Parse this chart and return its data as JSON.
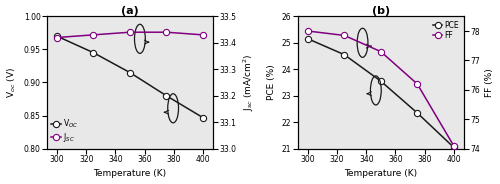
{
  "temperature": [
    300,
    325,
    350,
    375,
    400
  ],
  "Voc": [
    0.97,
    0.945,
    0.915,
    0.88,
    0.847
  ],
  "Jsc": [
    33.42,
    33.43,
    33.44,
    33.44,
    33.43
  ],
  "PCE": [
    25.15,
    24.55,
    23.55,
    22.35,
    21.05
  ],
  "FF": [
    78.0,
    77.85,
    77.3,
    76.2,
    74.1
  ],
  "color_black": "#1a1a1a",
  "color_purple": "#800080",
  "xlim": [
    293,
    407
  ],
  "xticks": [
    300,
    320,
    340,
    360,
    380,
    400
  ],
  "Voc_ylim": [
    0.8,
    1.0
  ],
  "Jsc_ylim": [
    33.0,
    33.5
  ],
  "PCE_ylim": [
    21.0,
    26.0
  ],
  "FF_ylim": [
    74.0,
    78.5
  ],
  "Voc_yticks": [
    0.8,
    0.85,
    0.9,
    0.95,
    1.0
  ],
  "Jsc_yticks": [
    33.0,
    33.1,
    33.2,
    33.3,
    33.4,
    33.5
  ],
  "PCE_yticks": [
    21,
    22,
    23,
    24,
    25,
    26
  ],
  "FF_yticks": [
    74,
    75,
    76,
    77,
    78
  ],
  "xlabel": "Temperature (K)",
  "ylabel_Voc": "V$_{oc}$ (V)",
  "ylabel_Jsc": "J$_{sc}$ (mA/cm$^2$)",
  "ylabel_PCE": "PCE (%)",
  "ylabel_FF": "FF (%)",
  "label_Voc": "V$_{OC}$",
  "label_Jsc": "J$_{SC}$",
  "label_PCE": "PCE",
  "label_FF": "FF",
  "title_a": "(a)",
  "title_b": "(b)"
}
